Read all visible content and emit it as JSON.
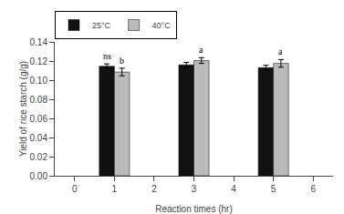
{
  "chart_data": {
    "type": "bar",
    "x": [
      1,
      3,
      5
    ],
    "xlabel": "Reaction times (hr)",
    "ylabel": "Yield of rice starch (g/g)",
    "xlim": [
      -0.5,
      6.5
    ],
    "xticks": [
      0,
      1,
      2,
      3,
      4,
      5,
      6
    ],
    "ylim": [
      0,
      0.14
    ],
    "yticks": [
      {
        "value": 0.0,
        "label": "0.00"
      },
      {
        "value": 0.02,
        "label": "0.02"
      },
      {
        "value": 0.04,
        "label": "0.04"
      },
      {
        "value": 0.06,
        "label": "0.06"
      },
      {
        "value": 0.08,
        "label": "0.08"
      },
      {
        "value": 0.1,
        "label": "0.10"
      },
      {
        "value": 0.12,
        "label": "0.12"
      },
      {
        "value": 0.14,
        "label": "0.14"
      }
    ],
    "series": [
      {
        "name": "25°C",
        "color": "#111111",
        "values": [
          0.1145,
          0.116,
          0.113
        ],
        "errors": [
          0.0025,
          0.0025,
          0.0025
        ]
      },
      {
        "name": "40°C",
        "color": "#bbbbbb",
        "values": [
          0.1085,
          0.1205,
          0.1175
        ],
        "errors": [
          0.004,
          0.003,
          0.004
        ]
      }
    ],
    "annotations": [
      {
        "text": "ns",
        "x": 1,
        "series": "25°C"
      },
      {
        "text": "b",
        "x": 1,
        "series": "40°C"
      },
      {
        "text": "a",
        "x": 3,
        "series": "40°C"
      },
      {
        "text": "a",
        "x": 5,
        "series": "40°C"
      }
    ],
    "legend": "upper left",
    "grid": false
  }
}
